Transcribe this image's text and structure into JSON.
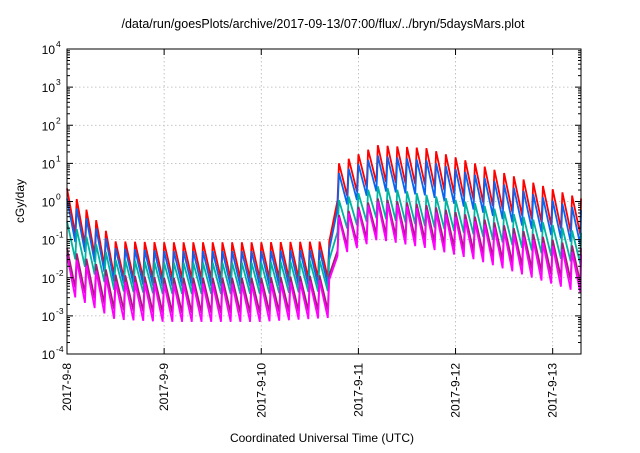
{
  "chart_data": {
    "type": "line",
    "title": "/data/run/goesPlots/archive/2017-09-13/07:00/flux/../bryn/5daysMars.plot",
    "xlabel": "Coordinated Universal Time (UTC)",
    "ylabel": "cGy/day",
    "yscale": "log",
    "grid": true,
    "xlim": [
      "2017-09-08",
      "2017-09-13 07:00"
    ],
    "ylim": [
      0.0001,
      10000
    ],
    "x_ticks": [
      "2017-9-8",
      "2017-9-9",
      "2017-9-10",
      "2017-9-11",
      "2017-9-12",
      "2017-9-13"
    ],
    "y_ticks": [
      {
        "base": "10",
        "exp": "-4"
      },
      {
        "base": "10",
        "exp": "-3"
      },
      {
        "base": "10",
        "exp": "-2"
      },
      {
        "base": "10",
        "exp": "-1"
      },
      {
        "base": "10",
        "exp": "0"
      },
      {
        "base": "10",
        "exp": "1"
      },
      {
        "base": "10",
        "exp": "2"
      },
      {
        "base": "10",
        "exp": "3"
      },
      {
        "base": "10",
        "exp": "4"
      }
    ],
    "series": [
      {
        "color": "#ff0000",
        "profile": [
          [
            0,
            2.2
          ],
          [
            0.5,
            0.09
          ],
          [
            1,
            0.085
          ],
          [
            2,
            0.085
          ],
          [
            2.74,
            0.09
          ],
          [
            2.76,
            9
          ],
          [
            3.2,
            30
          ],
          [
            3.7,
            25
          ],
          [
            4.2,
            10
          ],
          [
            5.29,
            1.2
          ]
        ],
        "trough_ratio": 0.11,
        "period_days": 0.1
      },
      {
        "color": "#0a64f0",
        "profile": [
          [
            0,
            1.2
          ],
          [
            0.5,
            0.06
          ],
          [
            1,
            0.05
          ],
          [
            2,
            0.05
          ],
          [
            2.74,
            0.055
          ],
          [
            2.76,
            5
          ],
          [
            3.2,
            16
          ],
          [
            3.7,
            12
          ],
          [
            4.2,
            5
          ],
          [
            5.29,
            0.6
          ]
        ],
        "trough_ratio": 0.12,
        "period_days": 0.1
      },
      {
        "color": "#00b3a0",
        "profile": [
          [
            0,
            0.3
          ],
          [
            0.5,
            0.03
          ],
          [
            1,
            0.025
          ],
          [
            2,
            0.025
          ],
          [
            2.74,
            0.03
          ],
          [
            2.76,
            1
          ],
          [
            3.2,
            2.5
          ],
          [
            3.7,
            1.5
          ],
          [
            4.2,
            0.9
          ],
          [
            5.29,
            0.15
          ]
        ],
        "trough_ratio": 0.15,
        "period_days": 0.1
      },
      {
        "color": "#a0206f",
        "profile": [
          [
            0,
            0.06
          ],
          [
            0.5,
            0.012
          ],
          [
            1,
            0.01
          ],
          [
            2,
            0.01
          ],
          [
            2.74,
            0.012
          ],
          [
            2.76,
            0.4
          ],
          [
            3.2,
            1.2
          ],
          [
            3.7,
            0.8
          ],
          [
            4.2,
            0.4
          ],
          [
            5.29,
            0.06
          ]
        ],
        "trough_ratio": 0.12,
        "period_days": 0.1
      },
      {
        "color": "#ff00ff",
        "profile": [
          [
            0,
            0.04
          ],
          [
            0.5,
            0.008
          ],
          [
            1,
            0.007
          ],
          [
            2,
            0.007
          ],
          [
            2.74,
            0.009
          ],
          [
            2.76,
            0.35
          ],
          [
            3.2,
            1.0
          ],
          [
            3.7,
            0.6
          ],
          [
            4.2,
            0.3
          ],
          [
            5.29,
            0.04
          ]
        ],
        "trough_ratio": 0.1,
        "period_days": 0.1
      }
    ]
  }
}
